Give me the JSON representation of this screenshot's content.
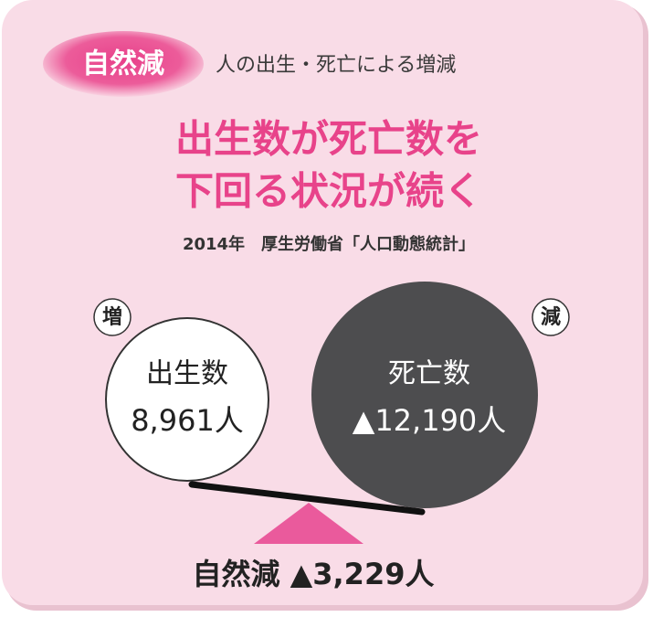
{
  "badge": "自然減",
  "subtitle": "人の出生・死亡による増減",
  "headline": [
    "出生数が死亡数を",
    "下回る状況が続く"
  ],
  "source": "2014年　厚生労働省「人口動態統計」",
  "increase_mark": "増",
  "decrease_mark": "減",
  "births": {
    "label": "出生数",
    "value": "8,961人"
  },
  "deaths": {
    "label": "死亡数",
    "value": "▲12,190人"
  },
  "result": "自然減 ▲3,229人"
}
